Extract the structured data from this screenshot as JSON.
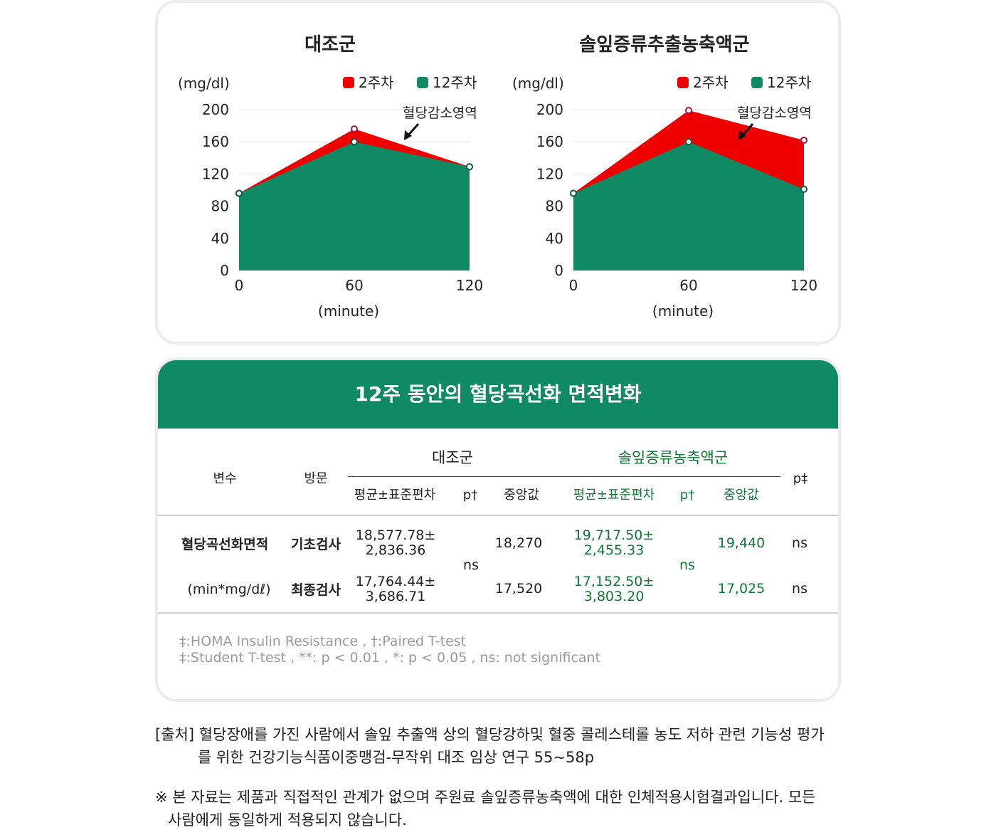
{
  "charts": {
    "panels": [
      "control",
      "treatment"
    ],
    "y_unit": "(mg/dl)",
    "x_unit": "(minute)",
    "annotation": "혈당감소영역"
  },
  "chart_data": [
    {
      "type": "area",
      "title": "대조군",
      "xlabel": "(minute)",
      "ylabel": "(mg/dl)",
      "x": [
        0,
        60,
        120
      ],
      "ylim": [
        0,
        200
      ],
      "yticks": [
        0,
        40,
        80,
        120,
        160,
        200
      ],
      "xticks": [
        0,
        60,
        120
      ],
      "grid": true,
      "legend_position": "top-right",
      "series": [
        {
          "name": "2주차",
          "values": [
            96,
            176,
            129
          ],
          "color": "#ee0000"
        },
        {
          "name": "12주차",
          "values": [
            96,
            160,
            129
          ],
          "color": "#0f8a63"
        }
      ],
      "annotations": [
        "혈당감소영역"
      ]
    },
    {
      "type": "area",
      "title": "솔잎증류추출농축액군",
      "xlabel": "(minute)",
      "ylabel": "(mg/dl)",
      "x": [
        0,
        60,
        120
      ],
      "ylim": [
        0,
        200
      ],
      "yticks": [
        0,
        40,
        80,
        120,
        160,
        200
      ],
      "xticks": [
        0,
        60,
        120
      ],
      "grid": true,
      "legend_position": "top-right",
      "series": [
        {
          "name": "2주차",
          "values": [
            96,
            199,
            162
          ],
          "color": "#ee0000"
        },
        {
          "name": "12주차",
          "values": [
            96,
            160,
            101
          ],
          "color": "#0f8a63"
        }
      ],
      "annotations": [
        "혈당감소영역"
      ]
    }
  ],
  "table": {
    "title": "12주 동안의 혈당곡선화 면적변화",
    "headers": {
      "variable": "변수",
      "visit": "방문",
      "control_group": "대조군",
      "treatment_group": "솔잎증류농축액군",
      "p_between": "p‡",
      "mean_sd": "평균±표준편차",
      "p_within": "p†",
      "median": "중앙값"
    },
    "variable_name": "혈당곡선화면적",
    "variable_unit": "(min*mg/dℓ)",
    "rows": [
      {
        "visit": "기초검사",
        "control_mean_1": "18,577.78±",
        "control_mean_2": "2,836.36",
        "control_median": "18,270",
        "treat_mean_1": "19,717.50±",
        "treat_mean_2": "2,455.33",
        "treat_median": "19,440",
        "p": "ns"
      },
      {
        "visit": "최종검사",
        "control_mean_1": "17,764.44±",
        "control_mean_2": "3,686.71",
        "control_median": "17,520",
        "treat_mean_1": "17,152.50±",
        "treat_mean_2": "3,803.20",
        "treat_median": "17,025",
        "p": "ns"
      }
    ],
    "control_p": "ns",
    "treat_p": "ns",
    "footnote_1": "‡:HOMA Insulin Resistance ,  †:Paired T-test",
    "footnote_2": "‡:Student T-test , **: p < 0.01 , *: p < 0.05 ,  ns: not significant"
  },
  "source": {
    "line_1": "[출처] 혈당장애를 가진 사람에서 솔잎 추출액 상의 혈당강하및 혈중 콜레스테롤 농도 저하 관련 기능성 평가",
    "line_2": "를 위한 건강기능식품이중맹검-무작위 대조 임상 연구 55~58p"
  },
  "disclaimer": {
    "line_1": "※ 본 자료는 제품과 직접적인 관계가 없으며 주원료 솔잎증류농축액에 대한 인체적용시험결과입니다. 모든",
    "line_2": "사람에게 동일하게 적용되지 않습니다."
  },
  "colors": {
    "accent_green": "#0f8a63",
    "red": "#ee0000",
    "text_green": "#0f7a33"
  }
}
